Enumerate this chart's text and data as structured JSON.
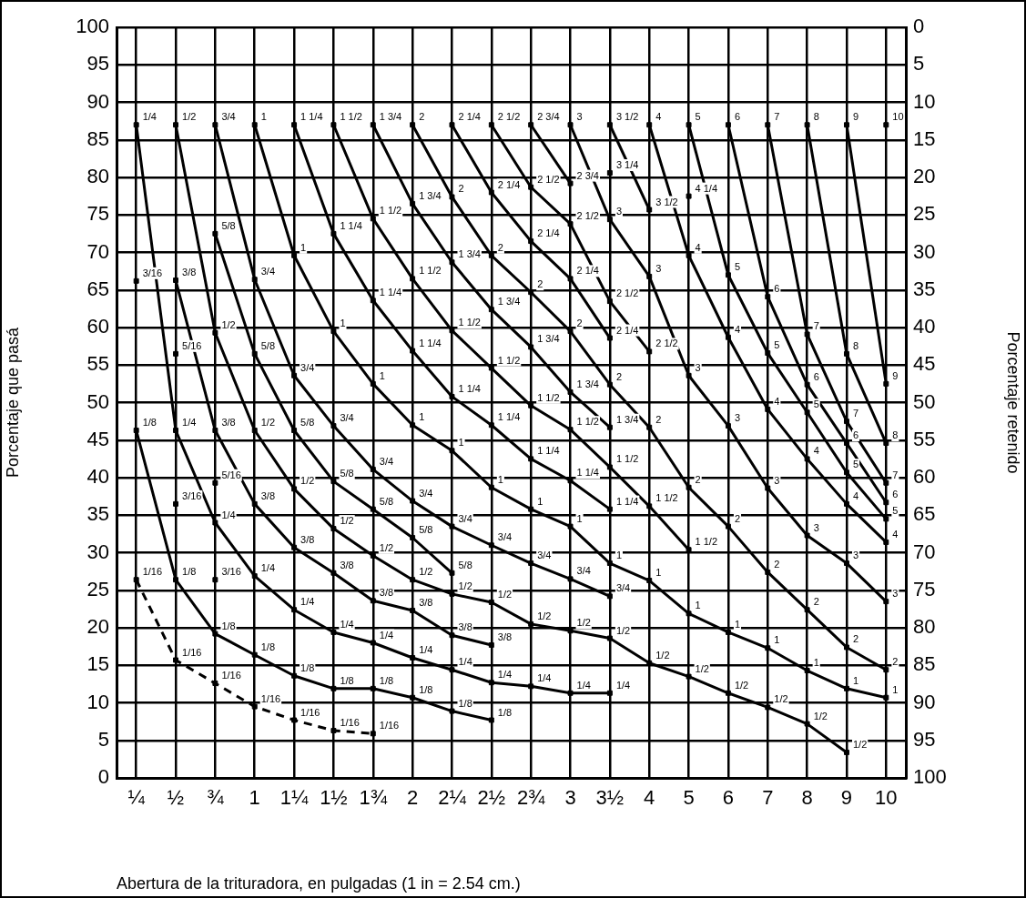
{
  "chart_data": {
    "type": "line",
    "xlabel": "Abertura de la trituradora, en pulgadas (1 in = 2.54 cm.)",
    "ylabel": "Porcentaje que pasá",
    "y2label": "Porcentaje retenido",
    "categories": [
      "¼",
      "½",
      "¾",
      "1",
      "1¼",
      "1½",
      "1¾",
      "2",
      "2¼",
      "2½",
      "2¾",
      "3",
      "3½",
      "4",
      "5",
      "6",
      "7",
      "8",
      "9",
      "10"
    ],
    "ylim": [
      0,
      100
    ],
    "yticks": [
      0,
      5,
      10,
      15,
      20,
      25,
      30,
      35,
      40,
      45,
      50,
      55,
      60,
      65,
      70,
      75,
      80,
      85,
      90,
      95,
      100
    ],
    "y2lim": [
      100,
      0
    ],
    "y2ticks": [
      0,
      5,
      10,
      15,
      20,
      25,
      30,
      35,
      40,
      45,
      50,
      55,
      60,
      65,
      70,
      75,
      80,
      85,
      90,
      95,
      100
    ],
    "grid": true,
    "marker": "square",
    "line_style": "solid",
    "series": [
      {
        "name": "1/16",
        "color": "#000000",
        "line_style": "dashed",
        "values": [
          26.4,
          15.7,
          12.6,
          9.5,
          7.7,
          6.3,
          5.9,
          null,
          null,
          null,
          null,
          null,
          null,
          null,
          null,
          null,
          null,
          null,
          null,
          null
        ]
      },
      {
        "name": "1/8",
        "color": "#000000",
        "values": [
          46.3,
          26.4,
          19.2,
          16.4,
          13.6,
          11.9,
          11.9,
          10.7,
          8.9,
          7.7,
          null,
          null,
          null,
          null,
          null,
          null,
          null,
          null,
          null,
          null
        ]
      },
      {
        "name": "3/16",
        "color": "#000000",
        "type": "scatter",
        "values": [
          66.2,
          36.5,
          26.4,
          null,
          null,
          null,
          null,
          null,
          null,
          null,
          null,
          null,
          null,
          null,
          null,
          null,
          null,
          null,
          null,
          null
        ]
      },
      {
        "name": "1/4",
        "color": "#000000",
        "values": [
          87,
          46.3,
          34.0,
          26.9,
          22.4,
          19.4,
          18.0,
          16.0,
          14.4,
          12.7,
          12.2,
          11.3,
          11.3,
          null,
          null,
          null,
          null,
          null,
          null,
          null
        ]
      },
      {
        "name": "5/16",
        "color": "#000000",
        "type": "scatter",
        "values": [
          null,
          56.5,
          39.3,
          null,
          null,
          null,
          null,
          null,
          null,
          null,
          null,
          null,
          null,
          null,
          null,
          null,
          null,
          null,
          null,
          null
        ]
      },
      {
        "name": "3/8",
        "color": "#000000",
        "values": [
          null,
          66.3,
          46.3,
          36.5,
          30.7,
          27.3,
          23.6,
          22.3,
          19.0,
          17.7,
          null,
          null,
          null,
          null,
          null,
          null,
          null,
          null,
          null,
          null
        ]
      },
      {
        "name": "1/2",
        "color": "#000000",
        "values": [
          null,
          87,
          59.3,
          46.3,
          38.5,
          33.2,
          29.6,
          26.4,
          24.5,
          23.4,
          20.5,
          19.6,
          18.6,
          15.3,
          13.5,
          11.3,
          9.4,
          7.2,
          3.4,
          null
        ]
      },
      {
        "name": "5/8",
        "color": "#000000",
        "values": [
          null,
          null,
          72.5,
          56.5,
          46.3,
          39.5,
          35.8,
          32.0,
          27.3,
          null,
          null,
          null,
          null,
          null,
          null,
          null,
          null,
          null,
          null,
          null
        ]
      },
      {
        "name": "3/4",
        "color": "#000000",
        "values": [
          null,
          null,
          87,
          66.4,
          53.6,
          46.9,
          41.1,
          36.9,
          33.5,
          31.0,
          28.6,
          26.5,
          24.2,
          null,
          null,
          null,
          null,
          null,
          null,
          null
        ]
      },
      {
        "name": "1",
        "color": "#000000",
        "values": [
          null,
          null,
          null,
          87,
          69.6,
          59.5,
          52.5,
          47.0,
          43.6,
          38.7,
          35.8,
          33.5,
          28.6,
          26.3,
          21.9,
          19.4,
          17.3,
          14.3,
          11.9,
          10.7
        ]
      },
      {
        "name": "1 1/4",
        "color": "#000000",
        "values": [
          null,
          null,
          null,
          null,
          87,
          72.5,
          63.6,
          56.9,
          50.8,
          47.0,
          42.5,
          39.6,
          35.8,
          null,
          null,
          null,
          null,
          null,
          null,
          null
        ]
      },
      {
        "name": "1 1/2",
        "color": "#000000",
        "values": [
          null,
          null,
          null,
          null,
          null,
          87,
          74.5,
          66.5,
          59.6,
          54.6,
          49.6,
          46.4,
          41.4,
          36.2,
          30.4,
          null,
          null,
          null,
          null,
          null
        ]
      },
      {
        "name": "1 3/4",
        "color": "#000000",
        "values": [
          null,
          null,
          null,
          null,
          null,
          null,
          87,
          76.5,
          68.7,
          62.4,
          57.4,
          51.4,
          46.7,
          null,
          null,
          null,
          null,
          null,
          null,
          null
        ]
      },
      {
        "name": "2",
        "color": "#000000",
        "values": [
          null,
          null,
          null,
          null,
          null,
          null,
          null,
          87,
          77.4,
          69.6,
          64.7,
          59.5,
          52.4,
          46.7,
          38.7,
          33.5,
          27.4,
          22.4,
          17.4,
          14.4
        ]
      },
      {
        "name": "2 1/4",
        "color": "#000000",
        "values": [
          null,
          null,
          null,
          null,
          null,
          null,
          null,
          null,
          87,
          78.0,
          71.5,
          66.5,
          58.6,
          null,
          null,
          null,
          null,
          null,
          null,
          null
        ]
      },
      {
        "name": "2 1/2",
        "color": "#000000",
        "values": [
          null,
          null,
          null,
          null,
          null,
          null,
          null,
          null,
          null,
          87,
          78.7,
          73.8,
          63.5,
          56.8,
          null,
          null,
          null,
          null,
          null,
          null
        ]
      },
      {
        "name": "2 3/4",
        "color": "#000000",
        "values": [
          null,
          null,
          null,
          null,
          null,
          null,
          null,
          null,
          null,
          null,
          87,
          79.2,
          null,
          null,
          null,
          null,
          null,
          null,
          null,
          null
        ]
      },
      {
        "name": "3",
        "color": "#000000",
        "values": [
          null,
          null,
          null,
          null,
          null,
          null,
          null,
          null,
          null,
          null,
          null,
          87,
          74.4,
          66.8,
          53.6,
          46.9,
          38.6,
          32.3,
          28.6,
          23.5
        ]
      },
      {
        "name": "3 1/4",
        "color": "#000000",
        "type": "scatter",
        "values": [
          null,
          null,
          null,
          null,
          null,
          null,
          null,
          null,
          null,
          null,
          null,
          null,
          80.6,
          null,
          null,
          null,
          null,
          null,
          null,
          null
        ]
      },
      {
        "name": "3 1/2",
        "color": "#000000",
        "values": [
          null,
          null,
          null,
          null,
          null,
          null,
          null,
          null,
          null,
          null,
          null,
          null,
          87,
          75.7,
          null,
          null,
          null,
          null,
          null,
          null
        ]
      },
      {
        "name": "4",
        "color": "#000000",
        "values": [
          null,
          null,
          null,
          null,
          null,
          null,
          null,
          null,
          null,
          null,
          null,
          null,
          null,
          87,
          69.6,
          58.7,
          49.1,
          42.5,
          36.5,
          31.4
        ]
      },
      {
        "name": "4 1/4",
        "color": "#000000",
        "type": "scatter",
        "values": [
          null,
          null,
          null,
          null,
          null,
          null,
          null,
          null,
          null,
          null,
          null,
          null,
          null,
          null,
          77.5,
          null,
          null,
          null,
          null,
          null
        ]
      },
      {
        "name": "5",
        "color": "#000000",
        "values": [
          null,
          null,
          null,
          null,
          null,
          null,
          null,
          null,
          null,
          null,
          null,
          null,
          null,
          null,
          87,
          67.0,
          56.6,
          48.7,
          40.7,
          34.5
        ]
      },
      {
        "name": "6",
        "color": "#000000",
        "values": [
          null,
          null,
          null,
          null,
          null,
          null,
          null,
          null,
          null,
          null,
          null,
          null,
          null,
          null,
          null,
          87,
          64.1,
          52.4,
          44.6,
          36.7
        ]
      },
      {
        "name": "7",
        "color": "#000000",
        "values": [
          null,
          null,
          null,
          null,
          null,
          null,
          null,
          null,
          null,
          null,
          null,
          null,
          null,
          null,
          null,
          null,
          87,
          59.1,
          47.5,
          39.3
        ]
      },
      {
        "name": "8",
        "color": "#000000",
        "values": [
          null,
          null,
          null,
          null,
          null,
          null,
          null,
          null,
          null,
          null,
          null,
          null,
          null,
          null,
          null,
          null,
          null,
          87,
          56.5,
          44.6
        ]
      },
      {
        "name": "9",
        "color": "#000000",
        "values": [
          null,
          null,
          null,
          null,
          null,
          null,
          null,
          null,
          null,
          null,
          null,
          null,
          null,
          null,
          null,
          null,
          null,
          null,
          87,
          52.5
        ]
      },
      {
        "name": "10",
        "color": "#000000",
        "type": "scatter",
        "values": [
          null,
          null,
          null,
          null,
          null,
          null,
          null,
          null,
          null,
          null,
          null,
          null,
          null,
          null,
          null,
          null,
          null,
          null,
          null,
          87
        ]
      }
    ]
  }
}
